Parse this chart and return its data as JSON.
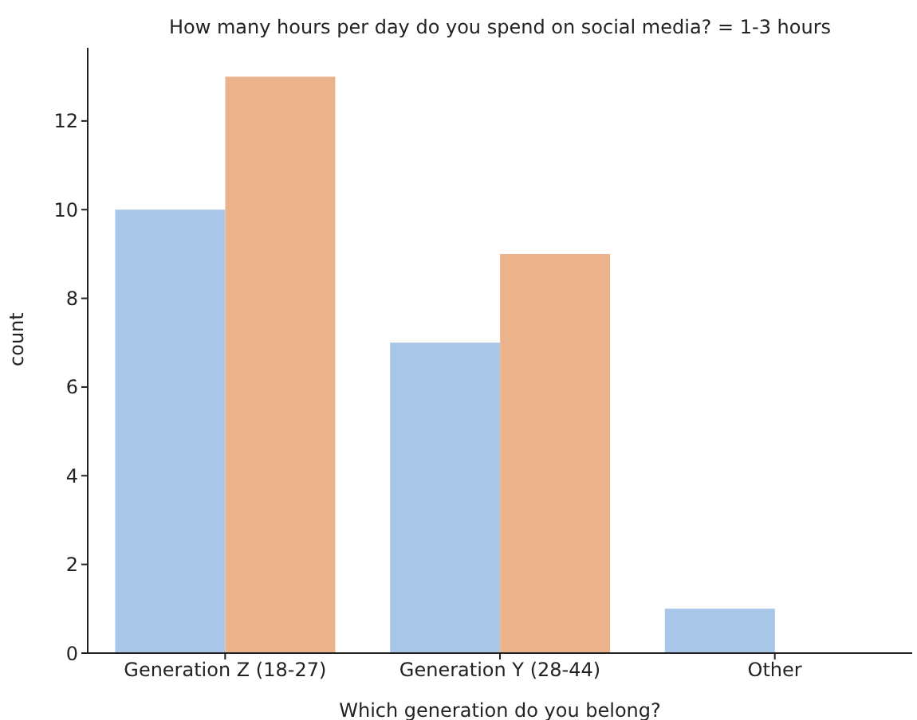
{
  "chart_data": {
    "type": "bar",
    "title": "How many hours per day do you spend on social media? = 1-3 hours",
    "xlabel": "Which generation do you belong?",
    "ylabel": "count",
    "categories": [
      "Generation Z (18-27)",
      "Generation Y (28-44)",
      "Other"
    ],
    "series": [
      {
        "color": "#a8c6e8",
        "values": [
          10,
          7,
          1
        ]
      },
      {
        "color": "#ebb38c",
        "values": [
          13,
          9,
          0
        ]
      }
    ],
    "ylim": [
      0,
      13.65
    ],
    "yticks": [
      0,
      2,
      4,
      6,
      8,
      10,
      12
    ],
    "grid": false,
    "legend": false
  }
}
